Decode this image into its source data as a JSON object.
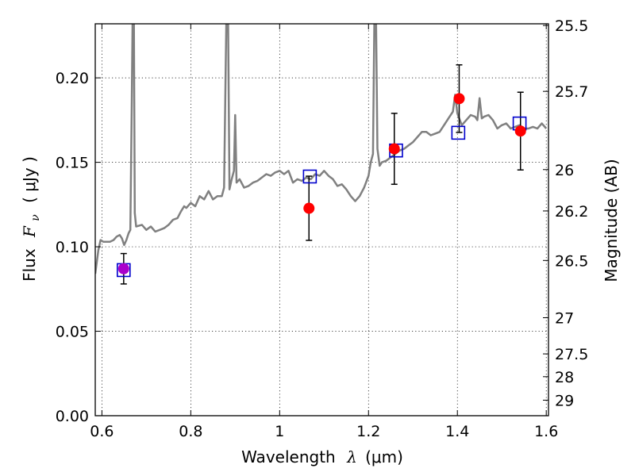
{
  "chart_data": {
    "type": "scatter",
    "xlabel_prefix": "Wavelength",
    "xlabel_math": "λ",
    "xlabel_units": "(μm)",
    "ylabel_prefix": "Flux",
    "ylabel_math": "F",
    "ylabel_sub": "ν",
    "ylabel_units": "( μJy )",
    "y2label": "Magnitude (AB)",
    "xlim": [
      0.585,
      1.605
    ],
    "ylim": [
      0.0,
      0.232
    ],
    "grid": true,
    "x_ticks": [
      0.6,
      0.8,
      1.0,
      1.2,
      1.4,
      1.6
    ],
    "x_tick_labels": [
      "0.6",
      "0.8",
      "1",
      "1.2",
      "1.4",
      "1.6"
    ],
    "y_ticks": [
      0.0,
      0.05,
      0.1,
      0.15,
      0.2
    ],
    "y_tick_labels": [
      "0.00",
      "0.05",
      "0.10",
      "0.15",
      "0.20"
    ],
    "y2_ticks": [
      {
        "label": "25.5",
        "flux": 0.231
      },
      {
        "label": "25.7",
        "flux": 0.192
      },
      {
        "label": "26",
        "flux": 0.1457
      },
      {
        "label": "26.2",
        "flux": 0.1212
      },
      {
        "label": "26.5",
        "flux": 0.0919
      },
      {
        "label": "27",
        "flux": 0.058
      },
      {
        "label": "27.5",
        "flux": 0.0366
      },
      {
        "label": "28",
        "flux": 0.0231
      },
      {
        "label": "29",
        "flux": 0.0092
      }
    ],
    "model_spectrum": {
      "color": "#808080",
      "points": [
        [
          0.585,
          0.084
        ],
        [
          0.592,
          0.098
        ],
        [
          0.597,
          0.104
        ],
        [
          0.603,
          0.103
        ],
        [
          0.61,
          0.103
        ],
        [
          0.618,
          0.103
        ],
        [
          0.626,
          0.104
        ],
        [
          0.633,
          0.106
        ],
        [
          0.64,
          0.107
        ],
        [
          0.645,
          0.105
        ],
        [
          0.65,
          0.101
        ],
        [
          0.655,
          0.104
        ],
        [
          0.66,
          0.108
        ],
        [
          0.664,
          0.11
        ],
        [
          0.667,
          0.18
        ],
        [
          0.669,
          0.232
        ],
        [
          0.672,
          0.232
        ],
        [
          0.674,
          0.12
        ],
        [
          0.677,
          0.112
        ],
        [
          0.69,
          0.113
        ],
        [
          0.7,
          0.11
        ],
        [
          0.71,
          0.112
        ],
        [
          0.72,
          0.109
        ],
        [
          0.73,
          0.11
        ],
        [
          0.74,
          0.111
        ],
        [
          0.75,
          0.113
        ],
        [
          0.76,
          0.116
        ],
        [
          0.77,
          0.117
        ],
        [
          0.778,
          0.121
        ],
        [
          0.785,
          0.124
        ],
        [
          0.79,
          0.123
        ],
        [
          0.8,
          0.126
        ],
        [
          0.81,
          0.124
        ],
        [
          0.82,
          0.13
        ],
        [
          0.83,
          0.128
        ],
        [
          0.84,
          0.133
        ],
        [
          0.85,
          0.128
        ],
        [
          0.86,
          0.13
        ],
        [
          0.87,
          0.13
        ],
        [
          0.875,
          0.135
        ],
        [
          0.88,
          0.232
        ],
        [
          0.884,
          0.232
        ],
        [
          0.887,
          0.134
        ],
        [
          0.892,
          0.14
        ],
        [
          0.897,
          0.145
        ],
        [
          0.9,
          0.178
        ],
        [
          0.903,
          0.138
        ],
        [
          0.91,
          0.14
        ],
        [
          0.92,
          0.135
        ],
        [
          0.93,
          0.136
        ],
        [
          0.94,
          0.138
        ],
        [
          0.95,
          0.139
        ],
        [
          0.96,
          0.141
        ],
        [
          0.97,
          0.143
        ],
        [
          0.98,
          0.142
        ],
        [
          0.99,
          0.144
        ],
        [
          1.0,
          0.145
        ],
        [
          1.01,
          0.143
        ],
        [
          1.02,
          0.145
        ],
        [
          1.03,
          0.138
        ],
        [
          1.04,
          0.14
        ],
        [
          1.05,
          0.139
        ],
        [
          1.06,
          0.141
        ],
        [
          1.07,
          0.14
        ],
        [
          1.08,
          0.143
        ],
        [
          1.09,
          0.142
        ],
        [
          1.1,
          0.145
        ],
        [
          1.11,
          0.142
        ],
        [
          1.12,
          0.14
        ],
        [
          1.13,
          0.136
        ],
        [
          1.14,
          0.137
        ],
        [
          1.15,
          0.134
        ],
        [
          1.16,
          0.13
        ],
        [
          1.17,
          0.127
        ],
        [
          1.18,
          0.13
        ],
        [
          1.19,
          0.135
        ],
        [
          1.2,
          0.142
        ],
        [
          1.205,
          0.15
        ],
        [
          1.21,
          0.155
        ],
        [
          1.213,
          0.232
        ],
        [
          1.217,
          0.232
        ],
        [
          1.22,
          0.158
        ],
        [
          1.225,
          0.148
        ],
        [
          1.23,
          0.15
        ],
        [
          1.24,
          0.151
        ],
        [
          1.25,
          0.153
        ],
        [
          1.26,
          0.155
        ],
        [
          1.27,
          0.157
        ],
        [
          1.28,
          0.158
        ],
        [
          1.29,
          0.16
        ],
        [
          1.3,
          0.162
        ],
        [
          1.31,
          0.165
        ],
        [
          1.32,
          0.168
        ],
        [
          1.33,
          0.168
        ],
        [
          1.34,
          0.166
        ],
        [
          1.35,
          0.167
        ],
        [
          1.36,
          0.168
        ],
        [
          1.37,
          0.172
        ],
        [
          1.38,
          0.176
        ],
        [
          1.39,
          0.18
        ],
        [
          1.395,
          0.19
        ],
        [
          1.4,
          0.179
        ],
        [
          1.41,
          0.172
        ],
        [
          1.42,
          0.175
        ],
        [
          1.43,
          0.178
        ],
        [
          1.44,
          0.177
        ],
        [
          1.445,
          0.175
        ],
        [
          1.45,
          0.188
        ],
        [
          1.455,
          0.176
        ],
        [
          1.46,
          0.177
        ],
        [
          1.47,
          0.178
        ],
        [
          1.48,
          0.175
        ],
        [
          1.49,
          0.17
        ],
        [
          1.5,
          0.172
        ],
        [
          1.51,
          0.173
        ],
        [
          1.52,
          0.17
        ],
        [
          1.53,
          0.171
        ],
        [
          1.54,
          0.172
        ],
        [
          1.55,
          0.17
        ],
        [
          1.56,
          0.17
        ],
        [
          1.57,
          0.171
        ],
        [
          1.58,
          0.17
        ],
        [
          1.59,
          0.173
        ],
        [
          1.6,
          0.17
        ]
      ]
    },
    "observed": {
      "color": "#ff0000",
      "points": [
        {
          "x": 1.066,
          "y": 0.1228,
          "yerr": 0.019
        },
        {
          "x": 1.258,
          "y": 0.158,
          "yerr": 0.021
        },
        {
          "x": 1.404,
          "y": 0.1877,
          "yerr": 0.02
        },
        {
          "x": 1.542,
          "y": 0.1685,
          "yerr": 0.023
        }
      ]
    },
    "observed_blended": {
      "color": "#aa00cc",
      "points": [
        {
          "x": 0.649,
          "y": 0.087,
          "yerr": 0.009
        }
      ]
    },
    "model_photometry": {
      "color": "#0000cc",
      "points": [
        {
          "x": 0.649,
          "y": 0.0862
        },
        {
          "x": 1.068,
          "y": 0.1416
        },
        {
          "x": 1.262,
          "y": 0.157
        },
        {
          "x": 1.402,
          "y": 0.1675
        },
        {
          "x": 1.54,
          "y": 0.173
        }
      ]
    }
  }
}
